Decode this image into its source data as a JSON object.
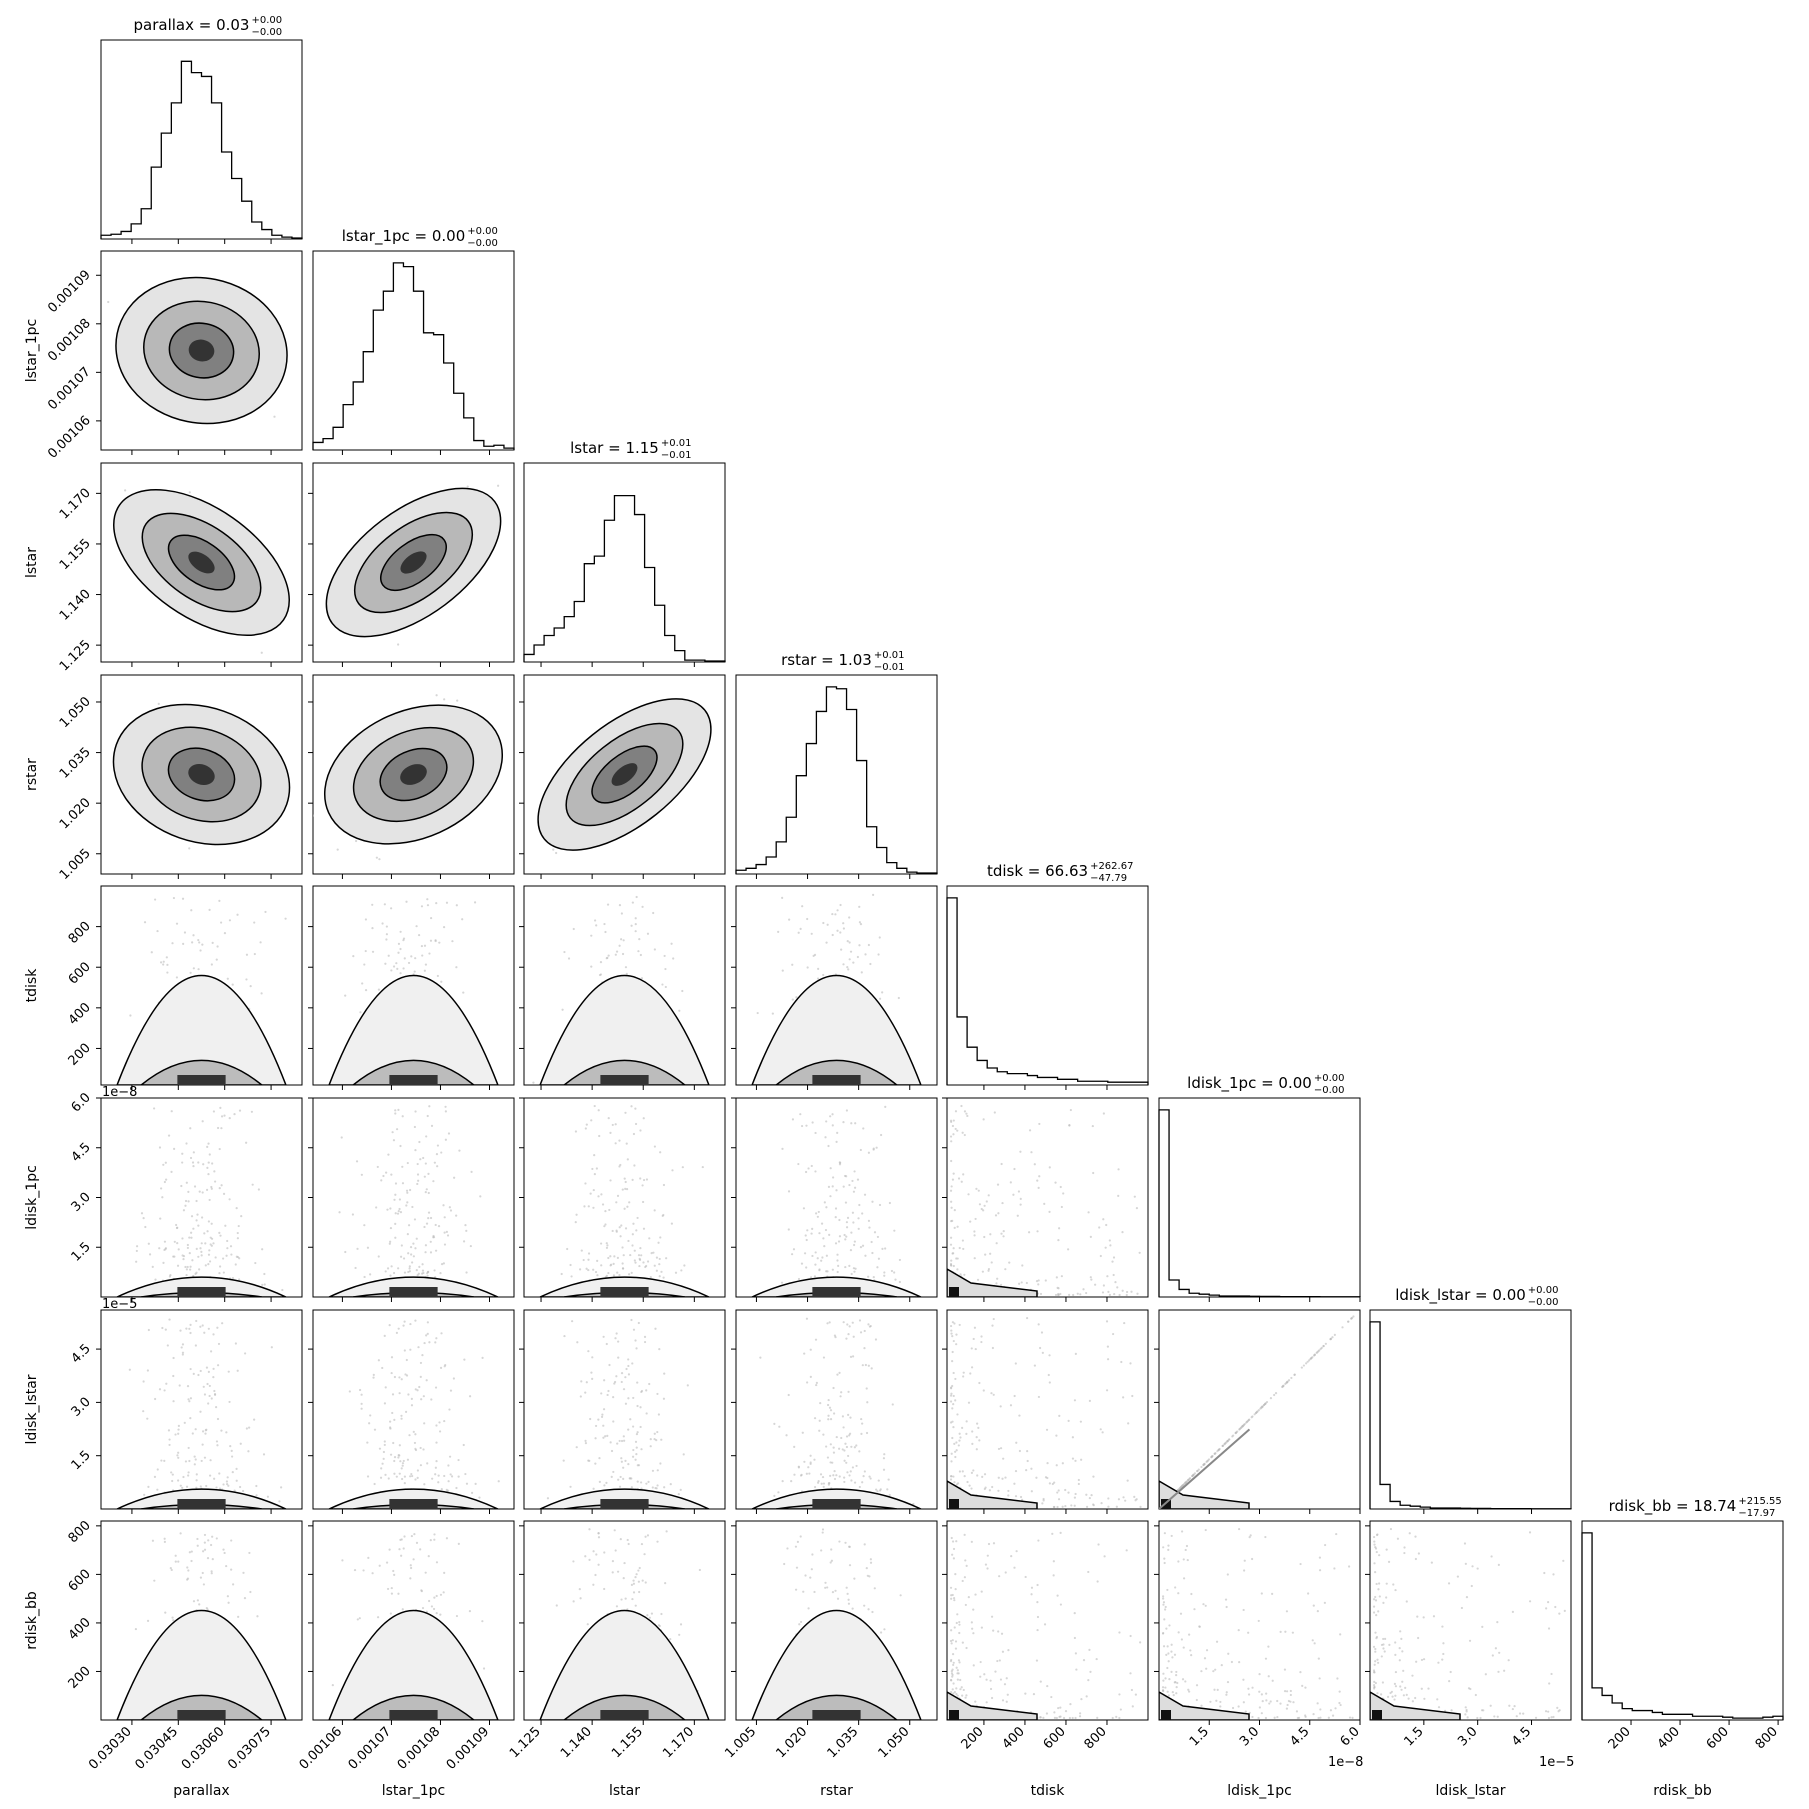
{
  "chart_data": {
    "type": "corner",
    "parameters": [
      {
        "name": "parallax",
        "title": "parallax = 0.03",
        "median": "0.03",
        "err_plus": "+0.00",
        "err_minus": "−0.00",
        "range": [
          0.0302,
          0.03085
        ],
        "ticks": [
          0.0303,
          0.03045,
          0.0306,
          0.03075
        ],
        "tick_labels": [
          "0.03030",
          "0.03045",
          "0.03060",
          "0.03075"
        ],
        "offset_label": ""
      },
      {
        "name": "lstar_1pc",
        "title": "lstar_1pc = 0.00",
        "median": "0.00",
        "err_plus": "+0.00",
        "err_minus": "−0.00",
        "range": [
          0.001054,
          0.001095
        ],
        "ticks": [
          0.00106,
          0.00107,
          0.00108,
          0.00109
        ],
        "tick_labels": [
          "0.00106",
          "0.00107",
          "0.00108",
          "0.00109"
        ],
        "offset_label": ""
      },
      {
        "name": "lstar",
        "title": "lstar = 1.15",
        "median": "1.15",
        "err_plus": "+0.01",
        "err_minus": "−0.01",
        "range": [
          1.12,
          1.179
        ],
        "ticks": [
          1.125,
          1.14,
          1.155,
          1.17
        ],
        "tick_labels": [
          "1.125",
          "1.140",
          "1.155",
          "1.170"
        ],
        "offset_label": ""
      },
      {
        "name": "rstar",
        "title": "rstar = 1.03",
        "median": "1.03",
        "err_plus": "+0.01",
        "err_minus": "−0.01",
        "range": [
          0.999,
          1.058
        ],
        "ticks": [
          1.005,
          1.02,
          1.035,
          1.05
        ],
        "tick_labels": [
          "1.005",
          "1.020",
          "1.035",
          "1.050"
        ],
        "offset_label": ""
      },
      {
        "name": "tdisk",
        "title": "tdisk = 66.63",
        "median": "66.63",
        "err_plus": "+262.67",
        "err_minus": "−47.79",
        "range": [
          20,
          1000
        ],
        "ticks": [
          200,
          400,
          600,
          800
        ],
        "tick_labels": [
          "200",
          "400",
          "600",
          "800"
        ],
        "offset_label": ""
      },
      {
        "name": "ldisk_1pc",
        "title": "ldisk_1pc = 0.00",
        "median": "0.00",
        "err_plus": "+0.00",
        "err_minus": "−0.00",
        "range": [
          0,
          6.0
        ],
        "ticks": [
          1.5,
          3.0,
          4.5,
          6.0
        ],
        "tick_labels": [
          "1.5",
          "3.0",
          "4.5",
          "6.0"
        ],
        "offset_label": "1e−8"
      },
      {
        "name": "ldisk_lstar",
        "title": "ldisk_lstar = 0.00",
        "median": "0.00",
        "err_plus": "+0.00",
        "err_minus": "−0.00",
        "range": [
          0,
          5.6
        ],
        "ticks": [
          1.5,
          3.0,
          4.5
        ],
        "tick_labels": [
          "1.5",
          "3.0",
          "4.5"
        ],
        "offset_label": "1e−5"
      },
      {
        "name": "rdisk_bb",
        "title": "rdisk_bb = 18.74",
        "median": "18.74",
        "err_plus": "+215.55",
        "err_minus": "−17.97",
        "range": [
          0,
          820
        ],
        "ticks": [
          200,
          400,
          600,
          800
        ],
        "tick_labels": [
          "200",
          "400",
          "600",
          "800"
        ],
        "offset_label": ""
      }
    ],
    "histograms": [
      [
        0.02,
        0.025,
        0.04,
        0.08,
        0.16,
        0.38,
        0.56,
        0.72,
        0.94,
        0.88,
        0.86,
        0.72,
        0.46,
        0.32,
        0.2,
        0.09,
        0.05,
        0.02,
        0.01,
        0.005
      ],
      [
        0.04,
        0.06,
        0.12,
        0.24,
        0.36,
        0.52,
        0.74,
        0.84,
        0.99,
        0.97,
        0.84,
        0.62,
        0.61,
        0.46,
        0.3,
        0.17,
        0.05,
        0.02,
        0.025,
        0.01
      ],
      [
        0.04,
        0.09,
        0.14,
        0.18,
        0.24,
        0.32,
        0.52,
        0.56,
        0.75,
        0.88,
        0.88,
        0.78,
        0.5,
        0.3,
        0.14,
        0.06,
        0.01,
        0.01,
        0.005,
        0.005
      ],
      [
        0.02,
        0.03,
        0.05,
        0.09,
        0.17,
        0.3,
        0.52,
        0.69,
        0.86,
        0.99,
        0.98,
        0.87,
        0.6,
        0.25,
        0.14,
        0.06,
        0.03,
        0.01,
        0.005,
        0.005
      ],
      [
        0.99,
        0.36,
        0.2,
        0.13,
        0.09,
        0.07,
        0.06,
        0.06,
        0.05,
        0.04,
        0.04,
        0.03,
        0.03,
        0.02,
        0.02,
        0.02,
        0.015,
        0.015,
        0.015,
        0.015
      ],
      [
        0.99,
        0.09,
        0.04,
        0.02,
        0.015,
        0.01,
        0.005,
        0.005,
        0.005,
        0.004,
        0.003,
        0.003,
        0.002,
        0.002,
        0.002,
        0.002,
        0.001,
        0.001,
        0.001,
        0.001
      ],
      [
        0.99,
        0.13,
        0.04,
        0.02,
        0.015,
        0.01,
        0.005,
        0.005,
        0.005,
        0.004,
        0.003,
        0.003,
        0.002,
        0.002,
        0.002,
        0.002,
        0.001,
        0.001,
        0.001,
        0.001
      ],
      [
        0.99,
        0.17,
        0.13,
        0.09,
        0.06,
        0.05,
        0.05,
        0.04,
        0.03,
        0.03,
        0.03,
        0.02,
        0.02,
        0.02,
        0.015,
        0.01,
        0.01,
        0.01,
        0.015,
        0.02
      ]
    ],
    "correlations": {
      "0_1": -0.2,
      "0_2": -0.7,
      "1_2": 0.75,
      "0_3": -0.35,
      "1_3": 0.45,
      "2_3": 0.8,
      "5_6": 1.0
    },
    "grid": false,
    "legend": "none"
  }
}
